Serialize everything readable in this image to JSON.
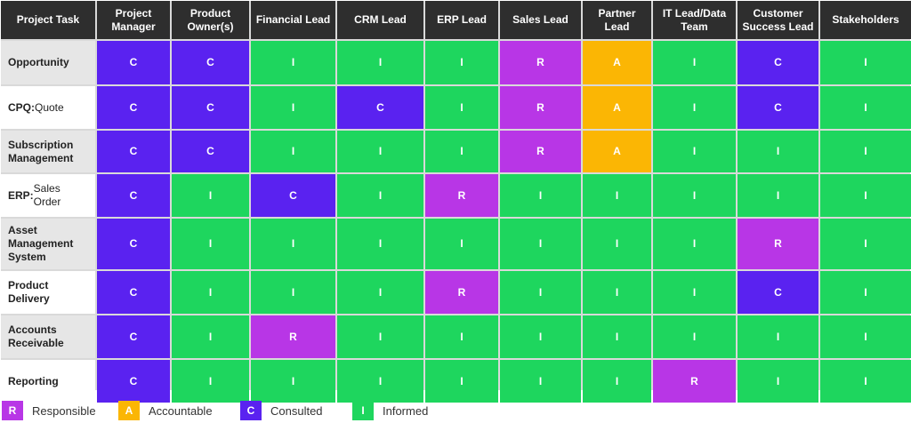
{
  "matrix": {
    "corner_label": "Project Task",
    "roles": [
      "Project Manager",
      "Product Owner(s)",
      "Financial Lead",
      "CRM Lead",
      "ERP Lead",
      "Sales Lead",
      "Partner Lead",
      "IT Lead/Data Team",
      "Customer Success Lead",
      "Stakeholders"
    ],
    "tasks": [
      {
        "prefix": "Opportunity",
        "rest": "",
        "assignments": [
          "C",
          "C",
          "I",
          "I",
          "I",
          "R",
          "A",
          "I",
          "C",
          "I"
        ]
      },
      {
        "prefix": "CPQ:",
        "rest": " Quote",
        "assignments": [
          "C",
          "C",
          "I",
          "C",
          "I",
          "R",
          "A",
          "I",
          "C",
          "I"
        ]
      },
      {
        "prefix": "Subscription Management",
        "rest": "",
        "assignments": [
          "C",
          "C",
          "I",
          "I",
          "I",
          "R",
          "A",
          "I",
          "I",
          "I"
        ]
      },
      {
        "prefix": "ERP:",
        "rest": " Sales Order",
        "assignments": [
          "C",
          "I",
          "C",
          "I",
          "R",
          "I",
          "I",
          "I",
          "I",
          "I"
        ]
      },
      {
        "prefix": "Asset Management System",
        "rest": "",
        "assignments": [
          "C",
          "I",
          "I",
          "I",
          "I",
          "I",
          "I",
          "I",
          "R",
          "I"
        ]
      },
      {
        "prefix": "Product Delivery",
        "rest": "",
        "assignments": [
          "C",
          "I",
          "I",
          "I",
          "R",
          "I",
          "I",
          "I",
          "C",
          "I"
        ]
      },
      {
        "prefix": "Accounts Receivable",
        "rest": "",
        "assignments": [
          "C",
          "I",
          "R",
          "I",
          "I",
          "I",
          "I",
          "I",
          "I",
          "I"
        ]
      },
      {
        "prefix": "Reporting",
        "rest": "",
        "assignments": [
          "C",
          "I",
          "I",
          "I",
          "I",
          "I",
          "I",
          "R",
          "I",
          "I"
        ]
      }
    ]
  },
  "legend": [
    {
      "code": "R",
      "label": "Responsible"
    },
    {
      "code": "A",
      "label": "Accountable"
    },
    {
      "code": "C",
      "label": "Consulted"
    },
    {
      "code": "I",
      "label": "Informed"
    }
  ],
  "colors": {
    "R": "#b836e6",
    "A": "#fbb604",
    "C": "#5a22f0",
    "I": "#1ed65e",
    "header": "#2e2e2e"
  }
}
